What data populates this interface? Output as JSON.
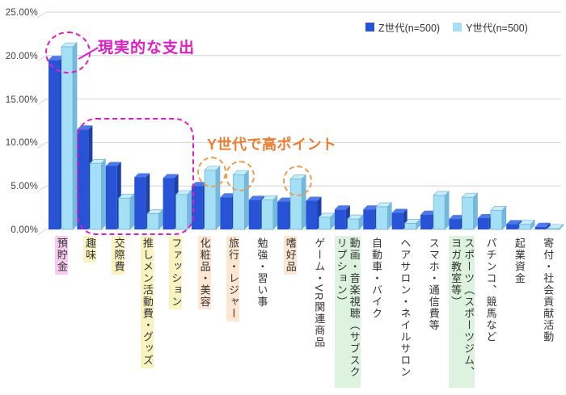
{
  "legend": {
    "items": [
      {
        "label": "Z世代(n=500)",
        "color": "#2853D6"
      },
      {
        "label": "Y世代(n=500)",
        "color": "#A4DFF5"
      }
    ]
  },
  "y_axis": {
    "ticks": [
      "25.00%",
      "20.00%",
      "15.00%",
      "10.00%",
      "5.00%",
      "0.00%"
    ],
    "min": 0,
    "max": 25,
    "step": 5
  },
  "chart_data": {
    "type": "bar",
    "style": "3d-clustered-column",
    "title": "",
    "xlabel": "",
    "ylabel": "",
    "ylim": [
      0,
      25
    ],
    "grid": true,
    "legend_position": "top-right",
    "categories": [
      "預貯金",
      "趣味",
      "交際費",
      "推しメン活動費・グッズ",
      "ファッション",
      "化粧品・美容",
      "旅行・レジャー",
      "勉強・習い事",
      "嗜好品",
      "ゲーム・VR関連商品",
      "動画・音楽視聴（サブスクリプション）",
      "自動車・バイク",
      "ヘアサロン・ネイルサロン",
      "スマホ・通信費等",
      "スポーツ（スポーツジム、ヨガ教室等）",
      "パチンコ、競馬など",
      "起業資金",
      "寄付・社会貢献活動"
    ],
    "series": [
      {
        "name": "Z世代(n=500)",
        "values": [
          19.5,
          11.5,
          7.3,
          6.0,
          5.9,
          5.0,
          3.7,
          3.4,
          3.2,
          3.3,
          2.3,
          2.3,
          1.9,
          1.7,
          1.2,
          1.3,
          0.6,
          0.3
        ]
      },
      {
        "name": "Y世代(n=500)",
        "values": [
          21.0,
          7.6,
          3.6,
          1.8,
          4.0,
          6.8,
          6.3,
          3.4,
          5.8,
          1.4,
          1.2,
          2.6,
          0.7,
          3.9,
          3.7,
          2.2,
          0.6,
          0.1
        ]
      }
    ]
  },
  "category_highlights": [
    "pink",
    "yellow",
    "yellow",
    "yellow",
    "yellow",
    "peach",
    "peach",
    "none",
    "peach",
    "none",
    "green",
    "none",
    "none",
    "none",
    "green",
    "none",
    "none",
    "none"
  ],
  "colors": {
    "highlight_pink": "#F6CBEF",
    "highlight_yellow": "#FAF3C0",
    "highlight_peach": "#FDE7D2",
    "highlight_green": "#DDF3E0",
    "gridline": "#D6D6D6",
    "axis_text": "#3F3F3F",
    "bar_z_front": "#2853D6",
    "bar_z_top": "#4E79E8",
    "bar_z_side": "#1E3FA8",
    "bar_y_front": "#A4DFF5",
    "bar_y_top": "#C9EEFB",
    "bar_y_side": "#74B9DC",
    "bar_y_edge": "#6FB3D8"
  },
  "annotations": {
    "realistic_spending": {
      "text": "現実的な支出",
      "color": "#E01CC8",
      "circled_category": "預貯金",
      "boxed_categories": [
        "趣味",
        "交際費",
        "推しメン活動費・グッズ",
        "ファッション"
      ]
    },
    "ygen_high": {
      "text": "Y世代で高ポイント",
      "color": "#ED7D31",
      "circle_color": "#EE9A49",
      "circled_categories": [
        "化粧品・美容",
        "旅行・レジャー",
        "嗜好品"
      ]
    }
  }
}
